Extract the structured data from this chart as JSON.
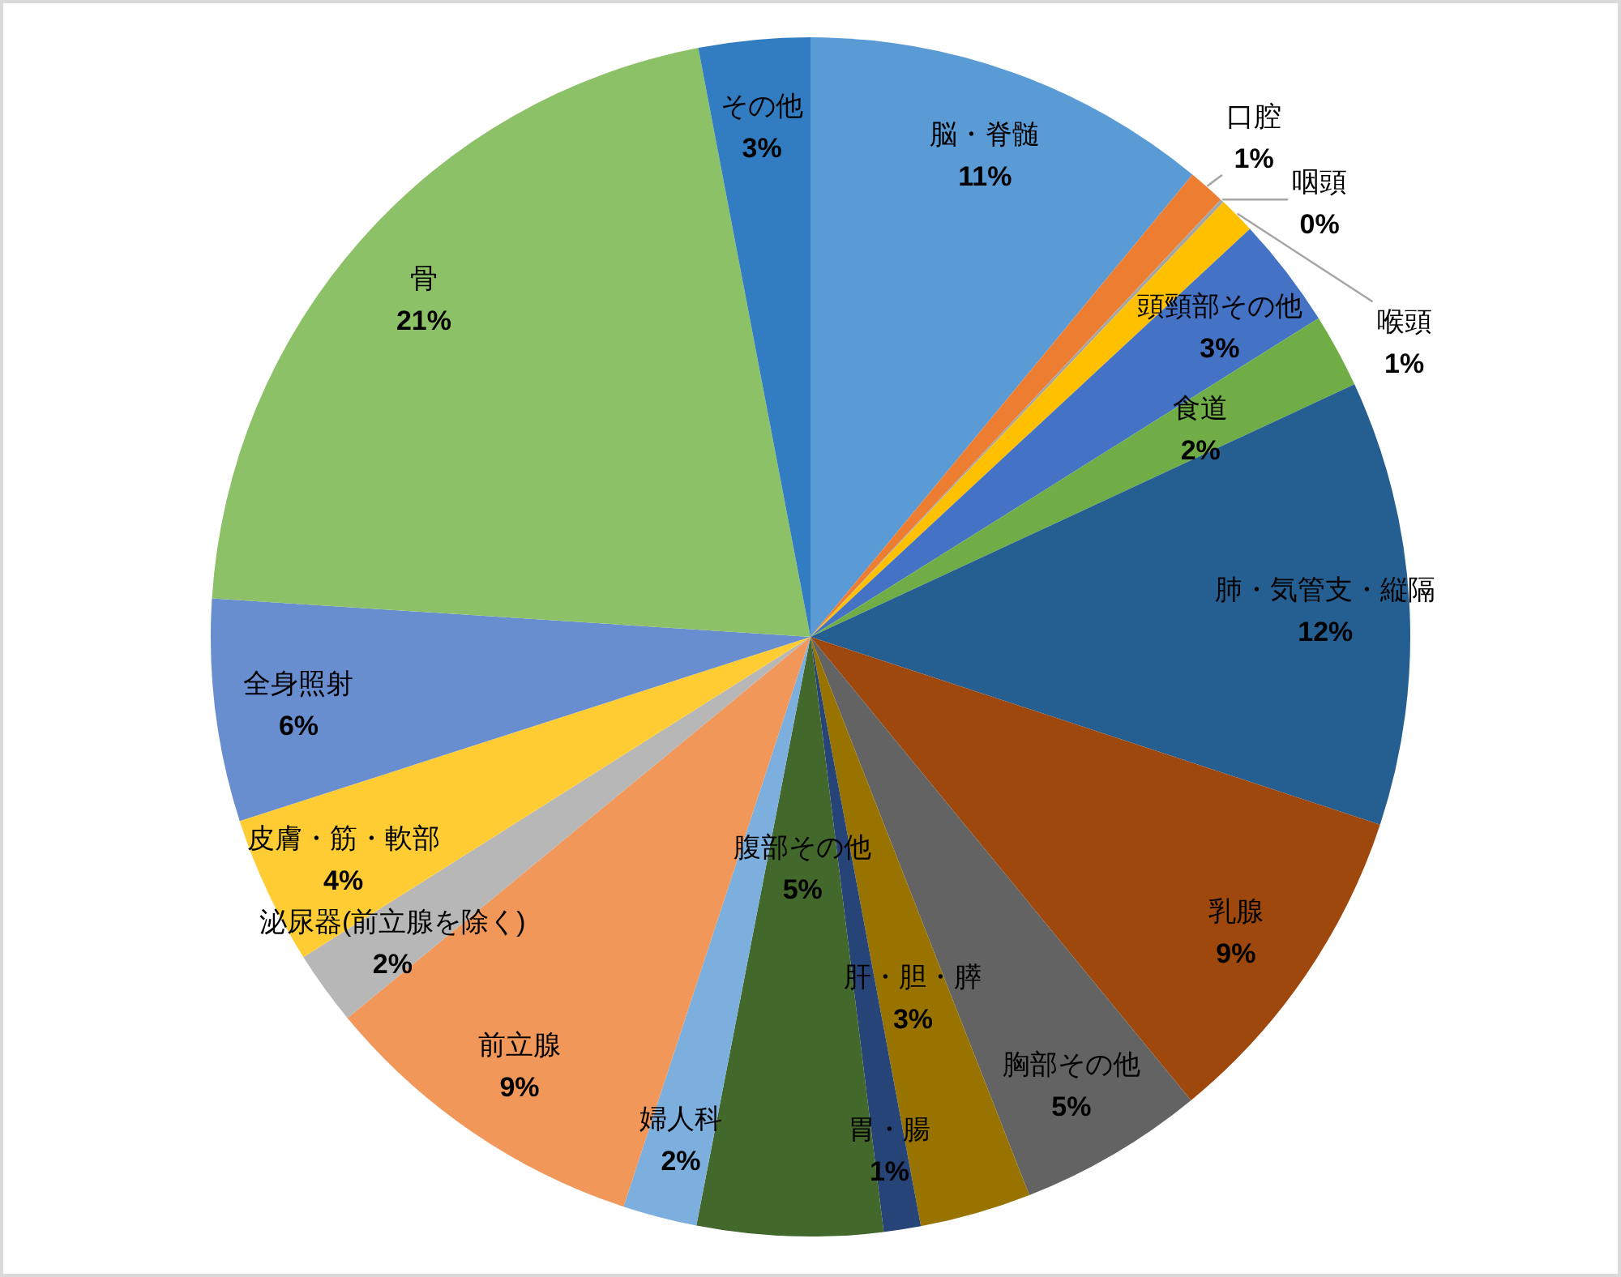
{
  "chart_data": {
    "type": "pie",
    "categories": [
      "脳・脊髄",
      "口腔",
      "咽頭",
      "喉頭",
      "頭頸部その他",
      "食道",
      "肺・気管支・縦隔",
      "乳腺",
      "胸部その他",
      "肝・胆・膵",
      "胃・腸",
      "腹部その他",
      "婦人科",
      "前立腺",
      "泌尿器(前立腺を除く)",
      "皮膚・筋・軟部",
      "全身照射",
      "骨",
      "その他"
    ],
    "values": [
      11,
      1,
      0.1,
      1,
      3,
      2,
      12,
      9,
      5,
      3,
      1,
      5,
      2,
      9,
      2,
      4,
      6,
      21,
      3
    ],
    "value_labels": [
      "11%",
      "1%",
      "0%",
      "1%",
      "3%",
      "2%",
      "12%",
      "9%",
      "5%",
      "3%",
      "1%",
      "5%",
      "2%",
      "9%",
      "2%",
      "4%",
      "6%",
      "21%",
      "3%"
    ],
    "colors": [
      "#5b9bd5",
      "#ed7d31",
      "#a5a5a5",
      "#ffc000",
      "#4472c4",
      "#70ad47",
      "#255e91",
      "#9e480e",
      "#636363",
      "#997300",
      "#264478",
      "#43682b",
      "#7cafdd",
      "#f1975a",
      "#b7b7b7",
      "#ffcd33",
      "#698ed0",
      "#8cc168",
      "#327dc2"
    ]
  }
}
